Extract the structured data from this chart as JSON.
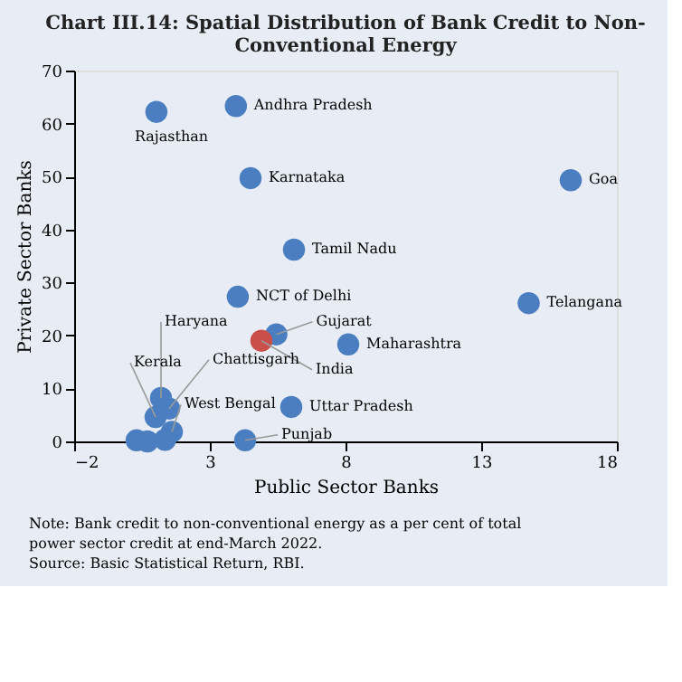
{
  "chart_data": {
    "type": "scatter",
    "title": "Chart III.14: Spatial Distribution of Bank Credit to Non-Conventional Energy",
    "xlabel": "Public Sector Banks",
    "ylabel": "Private Sector Banks",
    "x": [
      1.03,
      3.96,
      4.5,
      6.1,
      4.03,
      5.45,
      4.9,
      8.1,
      6.0,
      4.3,
      1.2,
      1.0,
      1.5,
      1.6,
      16.3,
      14.75,
      0.3,
      0.7,
      1.35
    ],
    "values": [
      62.2,
      63.3,
      49.7,
      36.2,
      27.3,
      20.2,
      19.0,
      18.3,
      6.5,
      0.2,
      8.2,
      4.6,
      6.2,
      1.8,
      49.3,
      26.1,
      0.2,
      0.0,
      0.3
    ],
    "colors": [
      "#4a7ec0",
      "#4a7ec0",
      "#4a7ec0",
      "#4a7ec0",
      "#4a7ec0",
      "#4a7ec0",
      "#c9504a",
      "#4a7ec0",
      "#4a7ec0",
      "#4a7ec0",
      "#4a7ec0",
      "#4a7ec0",
      "#4a7ec0",
      "#4a7ec0",
      "#4a7ec0",
      "#4a7ec0",
      "#4a7ec0",
      "#4a7ec0",
      "#4a7ec0"
    ],
    "xlim": [
      -2,
      18
    ],
    "xticks": [
      -2,
      3,
      8,
      13,
      18
    ],
    "ylim": [
      0,
      70
    ],
    "yticks": [
      0,
      10,
      20,
      30,
      40,
      50,
      60,
      70
    ],
    "grid": false,
    "annotations": [
      {
        "text": "Rajasthan",
        "x": 1.03,
        "y": 62.2
      },
      {
        "text": "Andhra Pradesh",
        "x": 3.96,
        "y": 63.3
      },
      {
        "text": "Karnataka",
        "x": 4.5,
        "y": 49.7
      },
      {
        "text": "Tamil Nadu",
        "x": 6.1,
        "y": 36.2
      },
      {
        "text": "NCT of Delhi",
        "x": 4.03,
        "y": 27.3
      },
      {
        "text": "Gujarat",
        "x": 5.45,
        "y": 20.2
      },
      {
        "text": "India",
        "x": 4.9,
        "y": 19.0
      },
      {
        "text": "Maharashtra",
        "x": 8.1,
        "y": 18.3
      },
      {
        "text": "Uttar Pradesh",
        "x": 6.0,
        "y": 6.5
      },
      {
        "text": "Punjab",
        "x": 4.3,
        "y": 0.2
      },
      {
        "text": "Haryana",
        "x": 1.2,
        "y": 8.2
      },
      {
        "text": "Kerala",
        "x": 1.0,
        "y": 4.6
      },
      {
        "text": "Chattisgarh",
        "x": 1.5,
        "y": 6.2
      },
      {
        "text": "West Bengal",
        "x": 1.6,
        "y": 1.8
      },
      {
        "text": "Goa",
        "x": 16.3,
        "y": 49.3
      },
      {
        "text": "Telangana",
        "x": 14.75,
        "y": 26.1
      },
      "Note: Bank credit to non-conventional energy as a per cent of total power sector credit at end-March 2022.",
      "Source: Basic Statistical Return, RBI."
    ]
  }
}
